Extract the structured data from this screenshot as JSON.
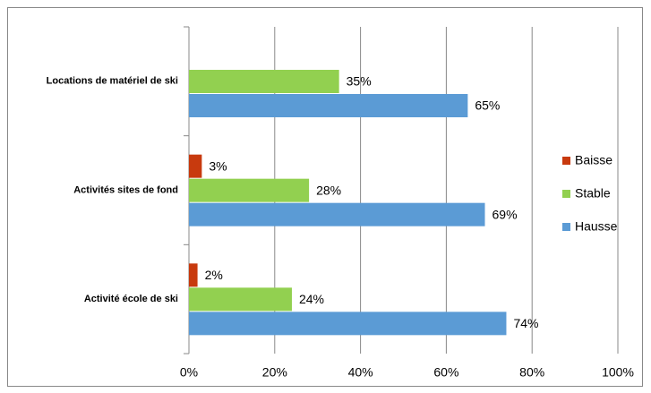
{
  "chart_data": {
    "type": "hbar",
    "categories": [
      "Locations de matériel de ski",
      "Activités sites de fond",
      "Activité école de ski"
    ],
    "series": [
      {
        "name": "Baisse",
        "color": "#c83a0e",
        "values": [
          null,
          3,
          2
        ],
        "value_labels": [
          null,
          "3%",
          "2%"
        ]
      },
      {
        "name": "Stable",
        "color": "#92d050",
        "values": [
          35,
          28,
          24
        ],
        "value_labels": [
          "35%",
          "28%",
          "24%"
        ]
      },
      {
        "name": "Hausse",
        "color": "#5b9bd5",
        "values": [
          65,
          69,
          74
        ],
        "value_labels": [
          "65%",
          "69%",
          "74%"
        ]
      }
    ],
    "xlim": [
      0,
      100
    ],
    "xticks": [
      {
        "value": 0,
        "label": "0%"
      },
      {
        "value": 20,
        "label": "20%"
      },
      {
        "value": 40,
        "label": "40%"
      },
      {
        "value": 60,
        "label": "60%"
      },
      {
        "value": 80,
        "label": "80%"
      },
      {
        "value": 100,
        "label": "100%"
      }
    ],
    "grid": true,
    "legend": "right"
  }
}
